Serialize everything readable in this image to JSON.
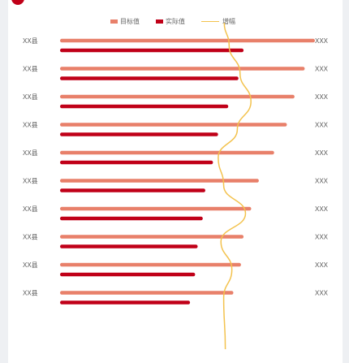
{
  "header": {
    "title": "",
    "links": [
      "",
      ""
    ]
  },
  "legend": {
    "plan_label": "目标值",
    "actual_label": "实际值",
    "line_label": "增幅"
  },
  "colors": {
    "plan": "#e8806a",
    "actual": "#c00018",
    "line": "#f3c24d",
    "brand": "#c00018"
  },
  "chart_data": {
    "type": "bar",
    "orientation": "horizontal",
    "categories": [
      "XX县",
      "XX县",
      "XX县",
      "XX县",
      "XX县",
      "XX县",
      "XX县",
      "XX县",
      "XX县",
      "XX县"
    ],
    "series": [
      {
        "name": "目标值",
        "values": [
          100,
          96,
          92,
          89,
          84,
          78,
          75,
          72,
          71,
          68
        ]
      },
      {
        "name": "实际值",
        "values": [
          72,
          70,
          66,
          62,
          60,
          57,
          56,
          54,
          53,
          51
        ]
      },
      {
        "name": "增幅",
        "type": "line",
        "values": [
          62,
          66,
          70,
          65,
          58,
          60,
          68,
          59,
          63,
          60
        ]
      }
    ],
    "value_labels": [
      "XXX",
      "XXX",
      "XXX",
      "XXX",
      "XXX",
      "XXX",
      "XXX",
      "XXX",
      "XXX",
      "XXX"
    ],
    "xlim": [
      0,
      100
    ],
    "line_xlim": [
      0,
      100
    ],
    "legend_position": "top",
    "grid": false
  }
}
